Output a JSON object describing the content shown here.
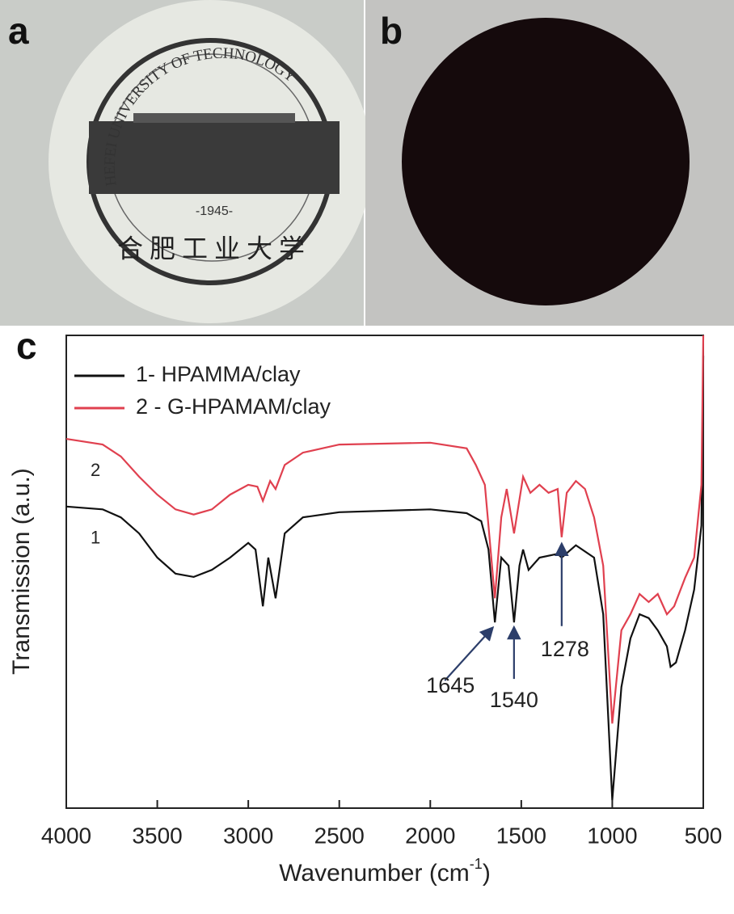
{
  "panels": {
    "a": "a",
    "b": "b",
    "c": "c"
  },
  "photo_a": {
    "arc_text": "HEFEI UNIVERSITY OF TECHNOLOGY",
    "year": "-1945-",
    "chinese": "合肥工业大学"
  },
  "chart_data": {
    "type": "line",
    "xlabel": [
      "Wavenumber (cm",
      "-1",
      ")"
    ],
    "ylabel": "Transmission (a.u.)",
    "xlim": [
      4000,
      500
    ],
    "xticks": [
      4000,
      3500,
      3000,
      2500,
      2000,
      1500,
      1000,
      500
    ],
    "ylim": [
      0,
      100
    ],
    "legend": "top-left",
    "series": [
      {
        "name": "1- HPAMMA/clay",
        "label": "1",
        "color": "#111111",
        "x": [
          4000,
          3800,
          3700,
          3600,
          3500,
          3400,
          3300,
          3200,
          3100,
          3000,
          2960,
          2920,
          2890,
          2850,
          2800,
          2700,
          2500,
          2000,
          1800,
          1720,
          1680,
          1645,
          1610,
          1570,
          1540,
          1510,
          1490,
          1460,
          1400,
          1300,
          1278,
          1200,
          1100,
          1050,
          1000,
          950,
          900,
          850,
          800,
          750,
          700,
          680,
          650,
          600,
          550,
          510,
          500
        ],
        "values": [
          63.8,
          63.2,
          61.5,
          58.1,
          53.0,
          49.6,
          48.9,
          50.4,
          53.0,
          56.1,
          54.7,
          42.7,
          53.0,
          44.4,
          58.1,
          61.5,
          62.6,
          63.2,
          62.4,
          60.7,
          54.7,
          39.3,
          53.0,
          51.3,
          39.3,
          51.3,
          54.7,
          50.4,
          53.0,
          53.8,
          53.0,
          55.6,
          53.0,
          41.0,
          1.7,
          25.6,
          35.9,
          41.0,
          40.2,
          37.6,
          34.2,
          29.9,
          30.8,
          37.6,
          46.2,
          59.8,
          95.7
        ]
      },
      {
        "name": "2 - G-HPAMAM/clay",
        "label": "2",
        "color": "#e0404f",
        "x": [
          4000,
          3800,
          3700,
          3600,
          3500,
          3400,
          3300,
          3200,
          3100,
          3000,
          2950,
          2920,
          2880,
          2850,
          2800,
          2700,
          2500,
          2000,
          1800,
          1750,
          1700,
          1645,
          1610,
          1580,
          1540,
          1490,
          1450,
          1400,
          1350,
          1300,
          1278,
          1250,
          1200,
          1150,
          1100,
          1050,
          1000,
          950,
          900,
          850,
          800,
          750,
          700,
          660,
          600,
          550,
          510,
          500
        ],
        "values": [
          78.1,
          76.9,
          74.4,
          70.1,
          66.3,
          63.2,
          62.1,
          63.2,
          66.3,
          68.4,
          68.0,
          65.0,
          69.2,
          67.5,
          72.6,
          75.2,
          76.9,
          77.3,
          76.1,
          72.6,
          68.4,
          44.4,
          61.5,
          67.5,
          58.1,
          70.1,
          66.7,
          68.4,
          66.7,
          67.5,
          57.3,
          66.7,
          69.2,
          67.5,
          61.5,
          51.3,
          17.9,
          37.6,
          41.0,
          45.3,
          43.6,
          45.3,
          41.0,
          42.7,
          48.7,
          53.0,
          68.4,
          100
        ]
      }
    ],
    "annotations": [
      {
        "x": 1645,
        "label": "1645"
      },
      {
        "x": 1540,
        "label": "1540"
      },
      {
        "x": 1278,
        "label": "1278"
      }
    ]
  }
}
